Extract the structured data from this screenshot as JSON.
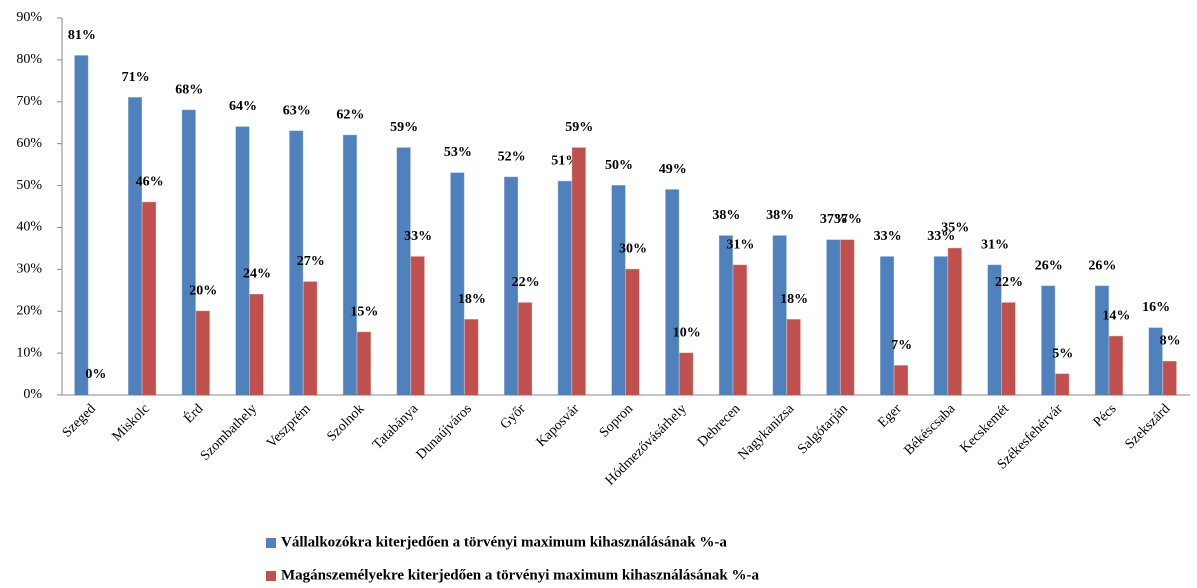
{
  "chart_data": {
    "type": "bar",
    "categories": [
      "Szeged",
      "Miskolc",
      "Érd",
      "Szombathely",
      "Veszprém",
      "Szolnok",
      "Tatabánya",
      "Dunaújváros",
      "Győr",
      "Kaposvár",
      "Sopron",
      "Hódmezővásárhely",
      "Debrecen",
      "Nagykanizsa",
      "Salgótarján",
      "Eger",
      "Békéscsaba",
      "Kecskemét",
      "Székesfehérvár",
      "Pécs",
      "Szekszárd"
    ],
    "series": [
      {
        "name": "Vállalkozókra kiterjedően a törvényi maximum kihasználásának %-a",
        "color": "#4f81bd",
        "values": [
          81,
          71,
          68,
          64,
          63,
          62,
          59,
          53,
          52,
          51,
          50,
          49,
          38,
          38,
          37,
          33,
          33,
          31,
          26,
          26,
          16
        ],
        "value_labels": [
          "81%",
          "71%",
          "68%",
          "64%",
          "63%",
          "62%",
          "59%",
          "53%",
          "52%",
          "51%",
          "50%",
          "49%",
          "38%",
          "38%",
          "37%",
          "33%",
          "33%",
          "31%",
          "26%",
          "26%",
          "16%"
        ]
      },
      {
        "name": "Magánszemélyekre kiterjedően a törvényi maximum kihasználásának %-a",
        "color": "#c0504d",
        "values": [
          0,
          46,
          20,
          24,
          27,
          15,
          33,
          18,
          22,
          59,
          30,
          10,
          31,
          18,
          37,
          7,
          35,
          22,
          5,
          14,
          8
        ],
        "value_labels": [
          "0%",
          "46%",
          "20%",
          "24%",
          "27%",
          "15%",
          "33%",
          "18%",
          "22%",
          "59%",
          "30%",
          "10%",
          "31%",
          "18%",
          "37%",
          "7%",
          "35%",
          "22%",
          "5%",
          "14%",
          "8%"
        ]
      }
    ],
    "ylim": [
      0,
      90
    ],
    "yticks": [
      {
        "value": 0,
        "label": "0%"
      },
      {
        "value": 10,
        "label": "10%"
      },
      {
        "value": 20,
        "label": "20%"
      },
      {
        "value": 30,
        "label": "30%"
      },
      {
        "value": 40,
        "label": "40%"
      },
      {
        "value": 50,
        "label": "50%"
      },
      {
        "value": 60,
        "label": "60%"
      },
      {
        "value": 70,
        "label": "70%"
      },
      {
        "value": 80,
        "label": "80%"
      },
      {
        "value": 90,
        "label": "90%"
      }
    ],
    "grid": false,
    "legend": "bottom"
  }
}
